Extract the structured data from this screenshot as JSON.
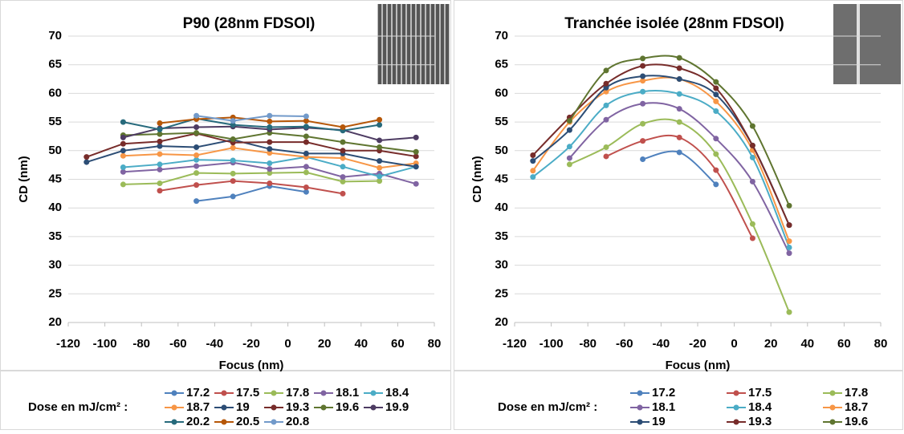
{
  "chart_data": [
    {
      "type": "line",
      "title": "P90 (28nm FDSOI)",
      "x_label": "Focus (nm)",
      "y_label": "CD (nm)",
      "legend_title": "Dose en mJ/cm² :",
      "xlim": [
        -120,
        80
      ],
      "xticks": [
        -120,
        -100,
        -80,
        -60,
        -40,
        -20,
        0,
        20,
        40,
        60,
        80
      ],
      "ylim": [
        20,
        70
      ],
      "yticks": [
        20,
        25,
        30,
        35,
        40,
        45,
        50,
        55,
        60,
        65,
        70
      ],
      "grid": true,
      "smooth": false,
      "x": [
        -110,
        -90,
        -70,
        -50,
        -30,
        -10,
        10,
        30,
        50,
        70
      ],
      "series": [
        {
          "name": "17.2",
          "color": "#4f81bd",
          "values": [
            null,
            null,
            null,
            41.2,
            42.0,
            43.8,
            42.8,
            null,
            null,
            null
          ]
        },
        {
          "name": "17.5",
          "color": "#c0504d",
          "values": [
            null,
            null,
            43.0,
            44.0,
            44.7,
            44.3,
            43.6,
            42.5,
            null,
            null
          ]
        },
        {
          "name": "17.8",
          "color": "#9bbb59",
          "values": [
            null,
            44.1,
            44.3,
            46.1,
            46.0,
            46.1,
            46.2,
            44.6,
            44.7,
            null
          ]
        },
        {
          "name": "18.1",
          "color": "#8064a2",
          "values": [
            null,
            46.3,
            46.7,
            47.3,
            47.9,
            46.8,
            47.2,
            45.4,
            46.0,
            44.2
          ]
        },
        {
          "name": "18.4",
          "color": "#4bacc6",
          "values": [
            null,
            47.1,
            47.6,
            48.4,
            48.3,
            47.8,
            48.9,
            47.2,
            45.5,
            47.2
          ]
        },
        {
          "name": "18.7",
          "color": "#f79646",
          "values": [
            null,
            49.1,
            49.4,
            49.2,
            50.5,
            49.6,
            48.9,
            48.7,
            47.0,
            47.8
          ]
        },
        {
          "name": "19",
          "color": "#2c4d75",
          "values": [
            48.0,
            50.0,
            50.8,
            50.6,
            51.9,
            50.3,
            49.5,
            49.5,
            48.2,
            47.2
          ]
        },
        {
          "name": "19.3",
          "color": "#772c2a",
          "values": [
            48.9,
            51.2,
            51.6,
            53.0,
            51.4,
            51.5,
            51.5,
            50.0,
            50.0,
            49.0
          ]
        },
        {
          "name": "19.6",
          "color": "#5f7530",
          "values": [
            null,
            52.7,
            52.9,
            53.1,
            52.0,
            53.1,
            52.5,
            51.5,
            50.6,
            49.8
          ]
        },
        {
          "name": "19.9",
          "color": "#4d3b62",
          "values": [
            null,
            52.3,
            53.9,
            54.1,
            54.2,
            53.7,
            54.0,
            53.6,
            51.8,
            52.3
          ]
        },
        {
          "name": "20.2",
          "color": "#276a7c",
          "values": [
            null,
            55.0,
            53.7,
            55.6,
            54.5,
            54.1,
            54.2,
            53.5,
            54.5,
            null
          ]
        },
        {
          "name": "20.5",
          "color": "#b65708",
          "values": [
            null,
            null,
            54.8,
            55.5,
            55.8,
            55.1,
            55.2,
            54.1,
            55.4,
            null
          ]
        },
        {
          "name": "20.8",
          "color": "#729aca",
          "values": [
            null,
            null,
            null,
            56.1,
            55.2,
            56.1,
            56.0,
            null,
            null,
            null
          ]
        }
      ]
    },
    {
      "type": "line",
      "title": "Tranchée isolée (28nm FDSOI)",
      "x_label": "Focus (nm)",
      "y_label": "CD (nm)",
      "legend_title": "Dose en mJ/cm² :",
      "xlim": [
        -120,
        80
      ],
      "xticks": [
        -120,
        -100,
        -80,
        -60,
        -40,
        -20,
        0,
        20,
        40,
        60,
        80
      ],
      "ylim": [
        20,
        70
      ],
      "yticks": [
        20,
        25,
        30,
        35,
        40,
        45,
        50,
        55,
        60,
        65,
        70
      ],
      "grid": true,
      "smooth": true,
      "x": [
        -110,
        -90,
        -70,
        -50,
        -30,
        -10,
        10,
        30
      ],
      "series": [
        {
          "name": "17.2",
          "color": "#4f81bd",
          "values": [
            null,
            null,
            null,
            48.5,
            49.7,
            44.1,
            null,
            null
          ]
        },
        {
          "name": "17.5",
          "color": "#c0504d",
          "values": [
            null,
            null,
            49.0,
            51.7,
            52.3,
            46.6,
            34.7,
            null
          ]
        },
        {
          "name": "17.8",
          "color": "#9bbb59",
          "values": [
            null,
            47.6,
            50.6,
            54.7,
            55.0,
            49.4,
            37.2,
            21.8
          ]
        },
        {
          "name": "18.1",
          "color": "#8064a2",
          "values": [
            null,
            48.7,
            55.4,
            58.2,
            57.3,
            52.1,
            44.6,
            32.1
          ]
        },
        {
          "name": "18.4",
          "color": "#4bacc6",
          "values": [
            45.4,
            50.7,
            57.9,
            60.3,
            59.9,
            56.9,
            48.8,
            33.1
          ]
        },
        {
          "name": "18.7",
          "color": "#f79646",
          "values": [
            46.5,
            55.0,
            60.3,
            62.2,
            62.5,
            58.6,
            50.1,
            34.2
          ]
        },
        {
          "name": "19",
          "color": "#2c4d75",
          "values": [
            48.2,
            53.6,
            61.0,
            63.0,
            62.5,
            59.8,
            50.9,
            37.0
          ]
        },
        {
          "name": "19.3",
          "color": "#772c2a",
          "values": [
            49.2,
            55.8,
            61.7,
            64.8,
            64.4,
            60.9,
            50.9,
            37.0
          ]
        },
        {
          "name": "19.6",
          "color": "#5f7530",
          "values": [
            null,
            55.2,
            64.0,
            66.1,
            66.2,
            62.0,
            54.3,
            40.4
          ]
        }
      ]
    }
  ]
}
